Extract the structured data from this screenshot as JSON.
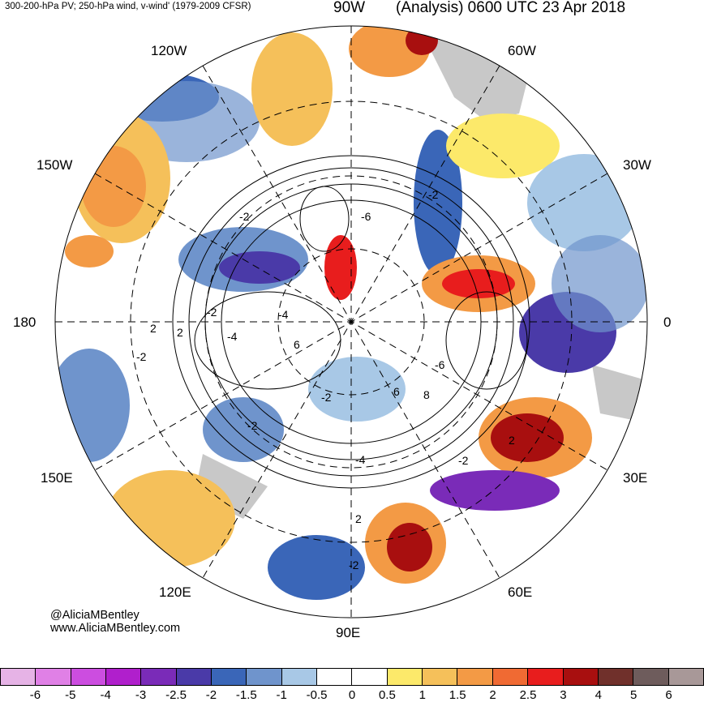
{
  "header": {
    "left_title": "300-200-hPa PV; 250-hPa wind, v-wind' (1979-2009 CFSR)",
    "top_label": "90W",
    "right_title": "(Analysis) 0600 UTC 23 Apr 2018"
  },
  "longitude_labels": {
    "w120": "120W",
    "w60": "60W",
    "w150": "150W",
    "w30": "30W",
    "w180": "180",
    "zero": "0",
    "e150": "150E",
    "e30": "30E",
    "e120": "120E",
    "e60": "60E",
    "e90": "90E"
  },
  "contour_labels": [
    "-2",
    "-2",
    "-2",
    "2",
    "-2",
    "-4",
    "6",
    "-6",
    "8",
    "6",
    "-2",
    "-4",
    "2",
    "-2",
    "-4",
    "-2",
    "2",
    "-6",
    "2",
    "-2"
  ],
  "credits": {
    "handle": "@AliciaMBentley",
    "site": "www.AliciaMBentley.com"
  },
  "colorbar": {
    "colors": [
      "#e6b3e6",
      "#e080e6",
      "#cc4de0",
      "#b01fcc",
      "#7a2bb8",
      "#4a3aa8",
      "#3a66b8",
      "#6f94cc",
      "#a8c8e6",
      "#ffffff",
      "#ffffff",
      "#fce96a",
      "#f5c05a",
      "#f39a45",
      "#f06a33",
      "#e81d1d",
      "#a80f0f",
      "#70302b",
      "#6e5c5c",
      "#a89898"
    ],
    "tick_labels": [
      "-6",
      "-5",
      "-4",
      "-3",
      "-2.5",
      "-2",
      "-1.5",
      "-1",
      "-0.5",
      "0",
      "0.5",
      "1",
      "1.5",
      "2",
      "2.5",
      "3",
      "4",
      "5",
      "6"
    ]
  }
}
